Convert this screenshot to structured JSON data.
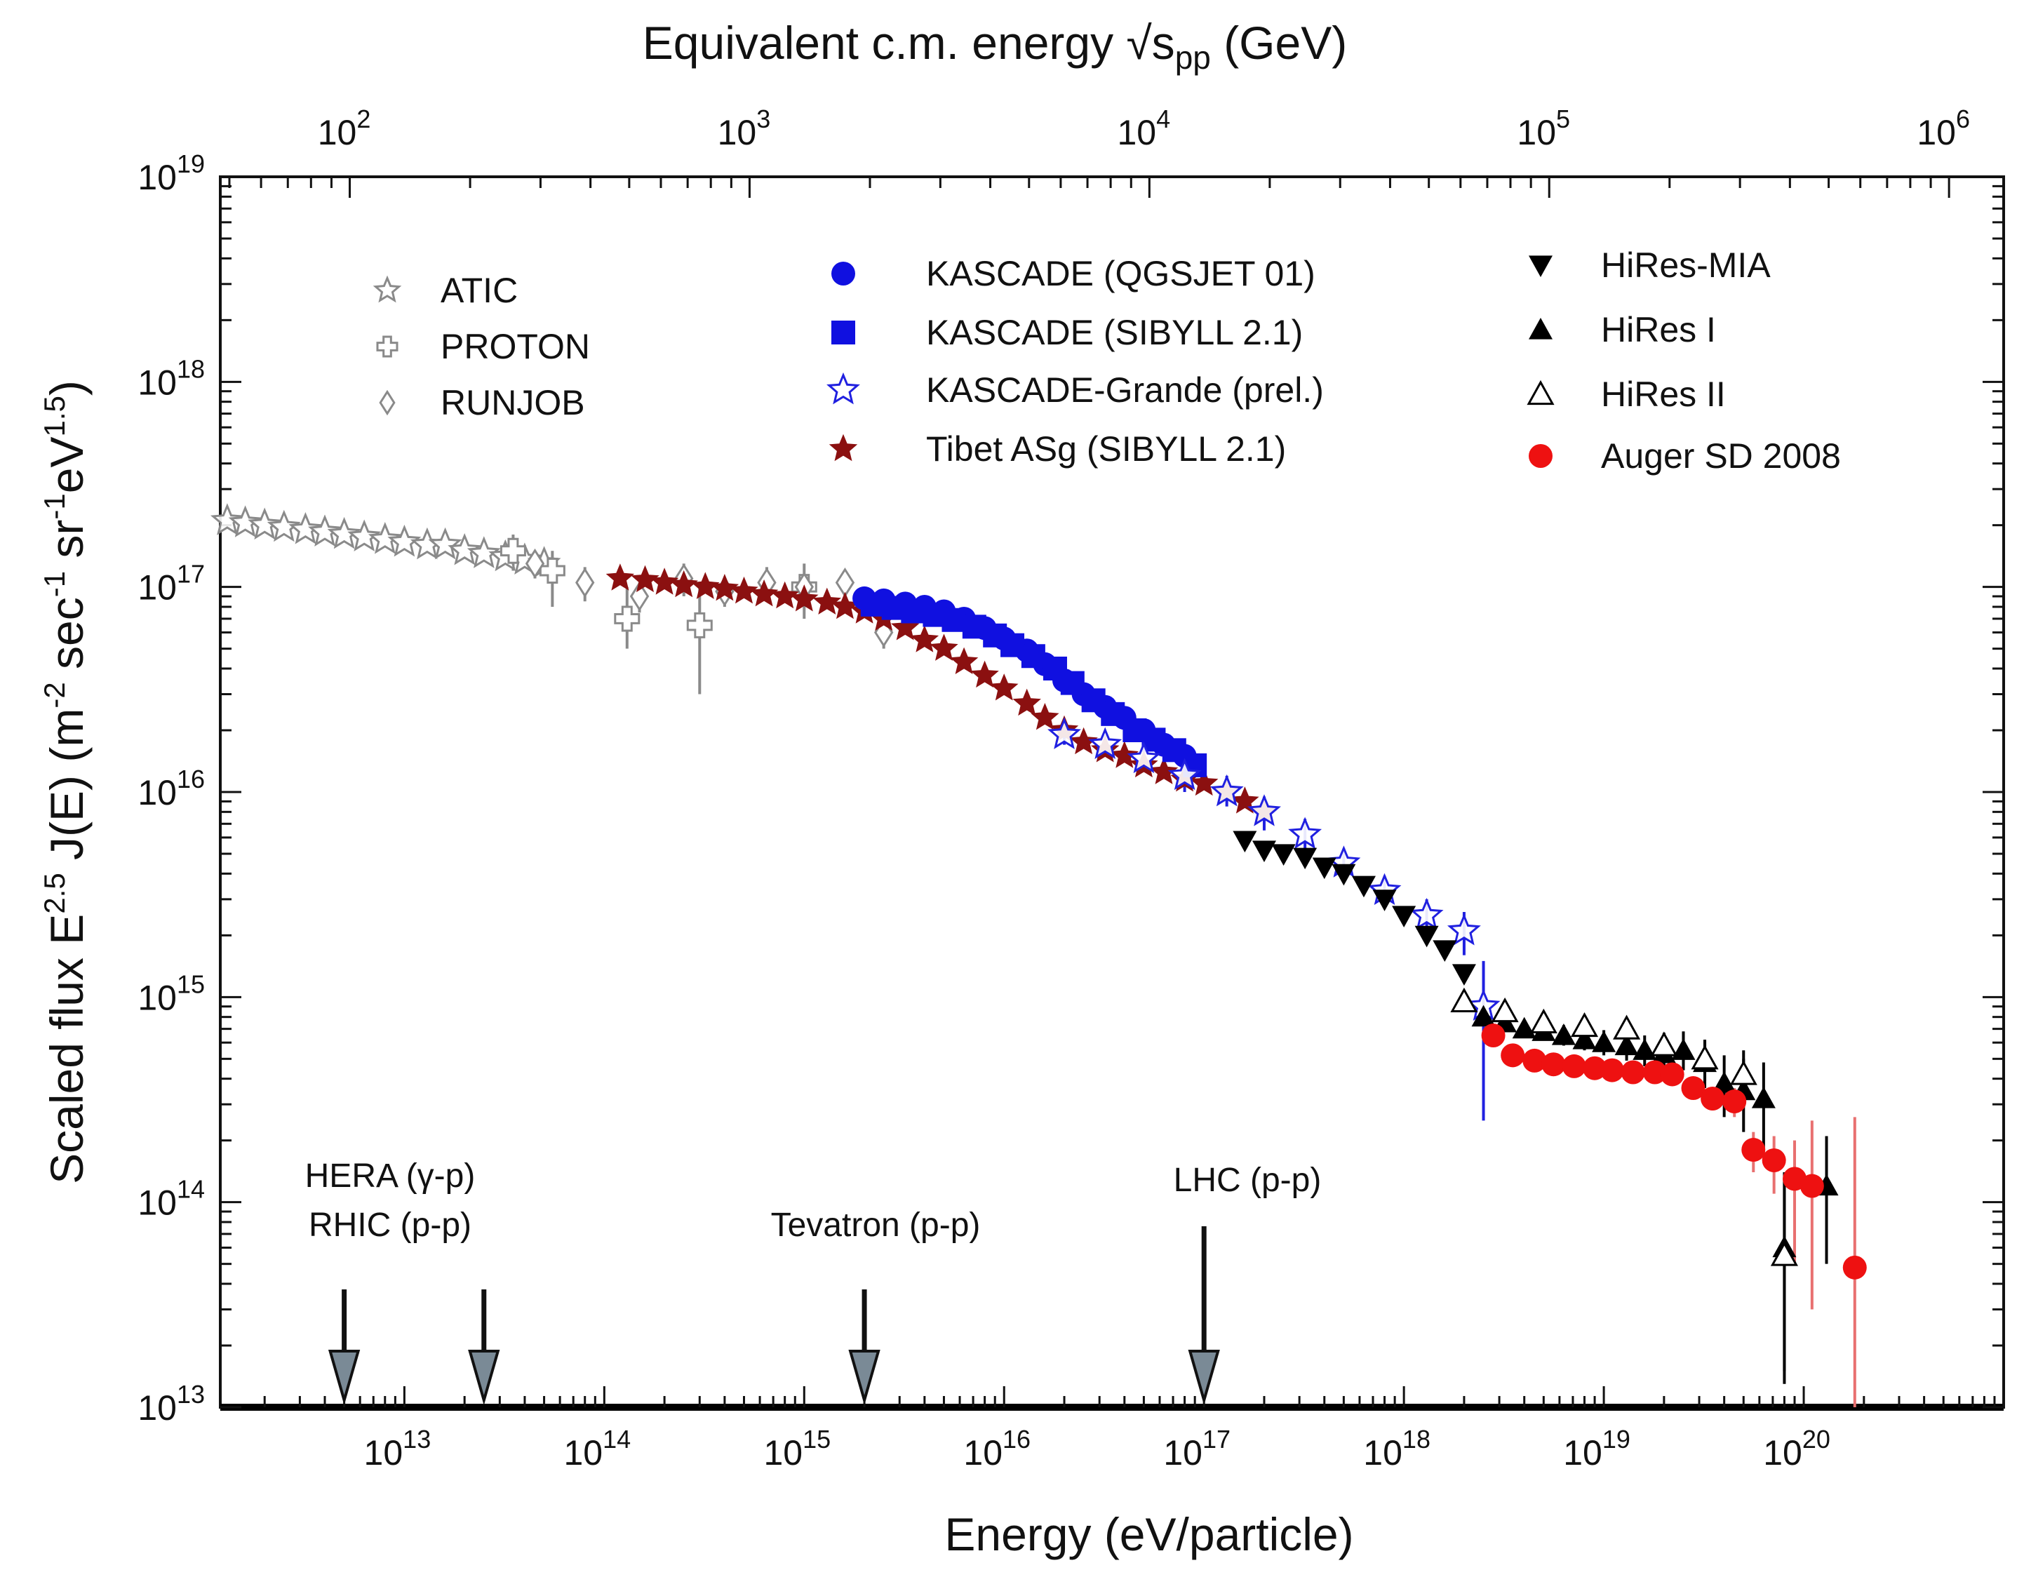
{
  "chart_data": {
    "type": "scatter",
    "xscale": "log",
    "yscale": "log",
    "xlabel": "Energy (eV/particle)",
    "ylabel": {
      "pre": "Scaled flux  E",
      "sup1": "2.5",
      "mid": " J(E) (m",
      "sup2": "-2",
      "mid2": " sec",
      "sup3": "-1",
      "mid3": " sr",
      "sup4": "-1",
      "mid4": "eV",
      "sup5": "1.5",
      "post": ")"
    },
    "top_xlabel": {
      "pre": "Equivalent c.m. energy ",
      "root": "√s",
      "sub": "pp",
      "post": "  (GeV)"
    },
    "xlim": [
      1200000000000.0,
      1e+21
    ],
    "ylim": [
      10000000000000.0,
      1e+19
    ],
    "x_ticks": [
      {
        "value": 10000000000000.0,
        "base": "10",
        "exp": "13"
      },
      {
        "value": 100000000000000.0,
        "base": "10",
        "exp": "14"
      },
      {
        "value": 1000000000000000.0,
        "base": "10",
        "exp": "15"
      },
      {
        "value": 1e+16,
        "base": "10",
        "exp": "16"
      },
      {
        "value": 1e+17,
        "base": "10",
        "exp": "17"
      },
      {
        "value": 1e+18,
        "base": "10",
        "exp": "18"
      },
      {
        "value": 1e+19,
        "base": "10",
        "exp": "19"
      },
      {
        "value": 1e+20,
        "base": "10",
        "exp": "20"
      }
    ],
    "y_ticks": [
      {
        "value": 10000000000000.0,
        "base": "10",
        "exp": "13"
      },
      {
        "value": 100000000000000.0,
        "base": "10",
        "exp": "14"
      },
      {
        "value": 1000000000000000.0,
        "base": "10",
        "exp": "15"
      },
      {
        "value": 1e+16,
        "base": "10",
        "exp": "16"
      },
      {
        "value": 1e+17,
        "base": "10",
        "exp": "17"
      },
      {
        "value": 1e+18,
        "base": "10",
        "exp": "18"
      },
      {
        "value": 1e+19,
        "base": "10",
        "exp": "19"
      }
    ],
    "top_ticks": [
      {
        "value": 100,
        "base": "10",
        "exp": "2"
      },
      {
        "value": 1000,
        "base": "10",
        "exp": "3"
      },
      {
        "value": 10000,
        "base": "10",
        "exp": "4"
      },
      {
        "value": 100000,
        "base": "10",
        "exp": "5"
      },
      {
        "value": 1000000,
        "base": "10",
        "exp": "6"
      }
    ],
    "legend": [
      {
        "label": "ATIC",
        "marker": "star-open",
        "color": "#8a8a8a"
      },
      {
        "label": "PROTON",
        "marker": "cross-open",
        "color": "#8a8a8a"
      },
      {
        "label": "RUNJOB",
        "marker": "diamond-open",
        "color": "#8a8a8a"
      },
      {
        "label": "KASCADE (QGSJET 01)",
        "marker": "circle",
        "color": "#1010e0"
      },
      {
        "label": "KASCADE (SIBYLL 2.1)",
        "marker": "square",
        "color": "#1010e0"
      },
      {
        "label": "KASCADE-Grande (prel.)",
        "marker": "star-open",
        "color": "#2020e0"
      },
      {
        "label": "Tibet ASg (SIBYLL 2.1)",
        "marker": "star",
        "color": "#8b1010"
      },
      {
        "label": "HiRes-MIA",
        "marker": "triangle-down",
        "color": "#000000"
      },
      {
        "label": "HiRes I",
        "marker": "triangle",
        "color": "#000000"
      },
      {
        "label": "HiRes II",
        "marker": "triangle-open",
        "color": "#000000"
      },
      {
        "label": "Auger SD 2008",
        "marker": "circle",
        "color": "#ee1111"
      }
    ],
    "series": [
      {
        "name": "ATIC",
        "marker": "star-open",
        "color": "#8a8a8a",
        "x": [
          1300000000000.0,
          1600000000000.0,
          2000000000000.0,
          2500000000000.0,
          3200000000000.0,
          4000000000000.0,
          5000000000000.0,
          6300000000000.0,
          8000000000000.0,
          10000000000000.0,
          13000000000000.0,
          16000000000000.0,
          20000000000000.0,
          25000000000000.0,
          32000000000000.0,
          40000000000000.0,
          50000000000000.0
        ],
        "y": [
          2.1e+17,
          2.05e+17,
          2e+17,
          1.95e+17,
          1.9e+17,
          1.85e+17,
          1.8e+17,
          1.75e+17,
          1.7e+17,
          1.65e+17,
          1.6e+17,
          1.6e+17,
          1.5e+17,
          1.45e+17,
          1.4e+17,
          1.35e+17,
          1.3e+17
        ]
      },
      {
        "name": "PROTON",
        "marker": "cross-open",
        "color": "#8a8a8a",
        "x": [
          35000000000000.0,
          55000000000000.0,
          130000000000000.0,
          300000000000000.0,
          1000000000000000.0
        ],
        "y": [
          1.5e+17,
          1.2e+17,
          7e+16,
          6.5e+16,
          1e+17
        ],
        "err_lo": [
          1.2e+17,
          8e+16,
          5e+16,
          3e+16,
          7e+16
        ],
        "err_hi": [
          1.8e+17,
          1.5e+17,
          1e+17,
          1e+17,
          1.3e+17
        ]
      },
      {
        "name": "RUNJOB",
        "marker": "diamond-open",
        "color": "#8a8a8a",
        "x": [
          45000000000000.0,
          80000000000000.0,
          150000000000000.0,
          250000000000000.0,
          400000000000000.0,
          650000000000000.0,
          1000000000000000.0,
          1600000000000000.0,
          2500000000000000.0
        ],
        "y": [
          1.3e+17,
          1.05e+17,
          9e+16,
          1.1e+17,
          9.5e+16,
          1.05e+17,
          1e+17,
          1.05e+17,
          6e+16
        ],
        "err_lo": [
          1.1e+17,
          8.5e+16,
          7.5e+16,
          9e+16,
          8e+16,
          8.5e+16,
          8.5e+16,
          9e+16,
          5e+16
        ],
        "err_hi": [
          1.5e+17,
          1.25e+17,
          1.05e+17,
          1.3e+17,
          1.1e+17,
          1.25e+17,
          1.15e+17,
          1.2e+17,
          7e+16
        ]
      },
      {
        "name": "Tibet ASg (SIBYLL 2.1)",
        "marker": "star",
        "color": "#8b1010",
        "x": [
          120000000000000.0,
          160000000000000.0,
          200000000000000.0,
          250000000000000.0,
          320000000000000.0,
          400000000000000.0,
          500000000000000.0,
          630000000000000.0,
          800000000000000.0,
          1000000000000000.0,
          1300000000000000.0,
          1600000000000000.0,
          2000000000000000.0,
          2500000000000000.0,
          3200000000000000.0,
          4000000000000000.0,
          5000000000000000.0,
          6300000000000000.0,
          8000000000000000.0,
          1e+16,
          1.3e+16,
          1.6e+16,
          2e+16,
          2.5e+16,
          3.2e+16,
          4e+16,
          5e+16,
          6.3e+16,
          8e+16,
          1e+17,
          1.3e+17,
          1.6e+17,
          2e+17
        ],
        "y": [
          1.1e+17,
          1.08e+17,
          1.05e+17,
          1.02e+17,
          1e+17,
          9.8e+16,
          9.5e+16,
          9.2e+16,
          9e+16,
          8.7e+16,
          8.4e+16,
          8e+16,
          7.6e+16,
          7e+16,
          6.3e+16,
          5.5e+16,
          5e+16,
          4.3e+16,
          3.7e+16,
          3.2e+16,
          2.7e+16,
          2.3e+16,
          2e+16,
          1.75e+16,
          1.6e+16,
          1.5e+16,
          1.35e+16,
          1.25e+16,
          1.15e+16,
          1.1e+16,
          1e+16,
          9000000000000000.0,
          8000000000000000.0
        ]
      },
      {
        "name": "KASCADE (QGSJET 01)",
        "marker": "circle",
        "color": "#1010e0",
        "x": [
          2000000000000000.0,
          2500000000000000.0,
          3200000000000000.0,
          4000000000000000.0,
          5000000000000000.0,
          6300000000000000.0,
          8000000000000000.0,
          1e+16,
          1.3e+16,
          1.6e+16,
          2e+16,
          2.5e+16,
          3.2e+16,
          4e+16,
          5e+16,
          6.3e+16,
          8e+16
        ],
        "y": [
          8.8e+16,
          8.6e+16,
          8.3e+16,
          8e+16,
          7.6e+16,
          7e+16,
          6.3e+16,
          5.6e+16,
          4.9e+16,
          4.2e+16,
          3.5e+16,
          3e+16,
          2.6e+16,
          2.3e+16,
          2e+16,
          1.7e+16,
          1.5e+16
        ]
      },
      {
        "name": "KASCADE (SIBYLL 2.1)",
        "marker": "square",
        "color": "#1010e0",
        "x": [
          2200000000000000.0,
          2800000000000000.0,
          3500000000000000.0,
          4500000000000000.0,
          5600000000000000.0,
          7100000000000000.0,
          9000000000000000.0,
          1.1e+16,
          1.4e+16,
          1.8e+16,
          2.2e+16,
          2.8e+16,
          3.5e+16,
          4.5e+16,
          5.6e+16,
          7.1e+16,
          9e+16
        ],
        "y": [
          8.2e+16,
          7.9e+16,
          7.6e+16,
          7.3e+16,
          6.9e+16,
          6.4e+16,
          5.8e+16,
          5.2e+16,
          4.6e+16,
          4e+16,
          3.4e+16,
          2.8e+16,
          2.4e+16,
          2e+16,
          1.8e+16,
          1.6e+16,
          1.35e+16
        ],
        "err_lo": [],
        "err_hi": []
      },
      {
        "name": "KASCADE-Grande (prel.)",
        "marker": "star-open",
        "color": "#2020e0",
        "x": [
          2e+16,
          3.2e+16,
          5e+16,
          8e+16,
          1.3e+17,
          2e+17,
          3.2e+17,
          5e+17,
          8e+17,
          1.3e+18,
          2e+18,
          2.5e+18
        ],
        "y": [
          1.9e+16,
          1.7e+16,
          1.45e+16,
          1.2e+16,
          1e+16,
          8000000000000000.0,
          6200000000000000.0,
          4500000000000000.0,
          3300000000000000.0,
          2500000000000000.0,
          2100000000000000.0,
          900000000000000.0
        ],
        "err_lo": [
          1.7e+16,
          1.5e+16,
          1.25e+16,
          1e+16,
          8500000000000000.0,
          6500000000000000.0,
          5000000000000000.0,
          3700000000000000.0,
          2700000000000000.0,
          2000000000000000.0,
          1600000000000000.0,
          250000000000000.0
        ],
        "err_hi": [
          2.1e+16,
          1.9e+16,
          1.65e+16,
          1.4e+16,
          1.2e+16,
          9500000000000000.0,
          7400000000000000.0,
          5300000000000000.0,
          3900000000000000.0,
          3000000000000000.0,
          2600000000000000.0,
          1500000000000000.0
        ]
      },
      {
        "name": "HiRes-MIA",
        "marker": "triangle-down",
        "color": "#000000",
        "x": [
          1.6e+17,
          2e+17,
          2.5e+17,
          3.2e+17,
          4e+17,
          5e+17,
          6.3e+17,
          8e+17,
          1e+18,
          1.3e+18,
          1.6e+18,
          2e+18
        ],
        "y": [
          5800000000000000.0,
          5200000000000000.0,
          5000000000000000.0,
          4800000000000000.0,
          4300000000000000.0,
          4000000000000000.0,
          3500000000000000.0,
          3000000000000000.0,
          2500000000000000.0,
          2000000000000000.0,
          1700000000000000.0,
          1300000000000000.0
        ]
      },
      {
        "name": "HiRes I",
        "marker": "triangle",
        "color": "#000000",
        "x": [
          2.5e+18,
          3.2e+18,
          4e+18,
          5e+18,
          6.3e+18,
          8e+18,
          1e+19,
          1.3e+19,
          1.6e+19,
          2e+19,
          2.5e+19,
          3.2e+19,
          4e+19,
          5e+19,
          6.3e+19,
          8e+19,
          1.3e+20
        ],
        "y": [
          800000000000000.0,
          750000000000000.0,
          700000000000000.0,
          680000000000000.0,
          650000000000000.0,
          620000000000000.0,
          600000000000000.0,
          580000000000000.0,
          550000000000000.0,
          530000000000000.0,
          550000000000000.0,
          480000000000000.0,
          380000000000000.0,
          350000000000000.0,
          320000000000000.0,
          60000000000000.0,
          120000000000000.0
        ],
        "err_lo": [
          740000000000000.0,
          690000000000000.0,
          640000000000000.0,
          620000000000000.0,
          580000000000000.0,
          550000000000000.0,
          520000000000000.0,
          490000000000000.0,
          460000000000000.0,
          430000000000000.0,
          440000000000000.0,
          360000000000000.0,
          260000000000000.0,
          220000000000000.0,
          180000000000000.0,
          15000000000000.0,
          50000000000000.0
        ],
        "err_hi": [
          870000000000000.0,
          820000000000000.0,
          770000000000000.0,
          750000000000000.0,
          730000000000000.0,
          700000000000000.0,
          690000000000000.0,
          680000000000000.0,
          650000000000000.0,
          640000000000000.0,
          680000000000000.0,
          620000000000000.0,
          520000000000000.0,
          500000000000000.0,
          480000000000000.0,
          140000000000000.0,
          210000000000000.0
        ]
      },
      {
        "name": "HiRes II",
        "marker": "triangle-open",
        "color": "#000000",
        "x": [
          2e+18,
          3.2e+18,
          5e+18,
          8e+18,
          1.3e+19,
          2e+19,
          3.2e+19,
          5e+19,
          8e+19
        ],
        "y": [
          950000000000000.0,
          850000000000000.0,
          750000000000000.0,
          720000000000000.0,
          700000000000000.0,
          580000000000000.0,
          500000000000000.0,
          420000000000000.0,
          55000000000000.0
        ],
        "err_lo": [
          880000000000000.0,
          780000000000000.0,
          680000000000000.0,
          640000000000000.0,
          610000000000000.0,
          490000000000000.0,
          390000000000000.0,
          300000000000000.0,
          13000000000000.0
        ],
        "err_hi": [
          1020000000000000.0,
          920000000000000.0,
          820000000000000.0,
          800000000000000.0,
          790000000000000.0,
          670000000000000.0,
          610000000000000.0,
          550000000000000.0,
          130000000000000.0
        ]
      },
      {
        "name": "Auger SD 2008",
        "marker": "circle",
        "color": "#ee1111",
        "x": [
          2.8e+18,
          3.5e+18,
          4.5e+18,
          5.6e+18,
          7.1e+18,
          9e+18,
          1.1e+19,
          1.4e+19,
          1.8e+19,
          2.2e+19,
          2.8e+19,
          3.5e+19,
          4.5e+19,
          5.6e+19,
          7.1e+19,
          9e+19,
          1.1e+20,
          1.8e+20
        ],
        "y": [
          650000000000000.0,
          520000000000000.0,
          490000000000000.0,
          470000000000000.0,
          460000000000000.0,
          450000000000000.0,
          440000000000000.0,
          430000000000000.0,
          430000000000000.0,
          420000000000000.0,
          360000000000000.0,
          320000000000000.0,
          310000000000000.0,
          180000000000000.0,
          160000000000000.0,
          130000000000000.0,
          120000000000000.0,
          48000000000000.0
        ],
        "err_lo": [
          620000000000000.0,
          490000000000000.0,
          460000000000000.0,
          440000000000000.0,
          430000000000000.0,
          420000000000000.0,
          410000000000000.0,
          400000000000000.0,
          390000000000000.0,
          380000000000000.0,
          320000000000000.0,
          280000000000000.0,
          260000000000000.0,
          140000000000000.0,
          110000000000000.0,
          50000000000000.0,
          30000000000000.0,
          10000000000000.0
        ],
        "err_hi": [
          680000000000000.0,
          550000000000000.0,
          520000000000000.0,
          500000000000000.0,
          490000000000000.0,
          480000000000000.0,
          470000000000000.0,
          460000000000000.0,
          470000000000000.0,
          460000000000000.0,
          400000000000000.0,
          360000000000000.0,
          360000000000000.0,
          220000000000000.0,
          210000000000000.0,
          200000000000000.0,
          250000000000000.0,
          260000000000000.0
        ]
      }
    ],
    "annotations": [
      {
        "lines": [
          "HERA (γ-p)"
        ],
        "arrow_x": 5000000000000.0
      },
      {
        "lines": [
          "RHIC (p-p)"
        ],
        "arrow_x": 25000000000000.0
      },
      {
        "lines": [
          "Tevatron (p-p)"
        ],
        "arrow_x": 2000000000000000.0
      },
      {
        "lines": [
          "LHC (p-p)"
        ],
        "arrow_x": 1e+17
      }
    ]
  }
}
